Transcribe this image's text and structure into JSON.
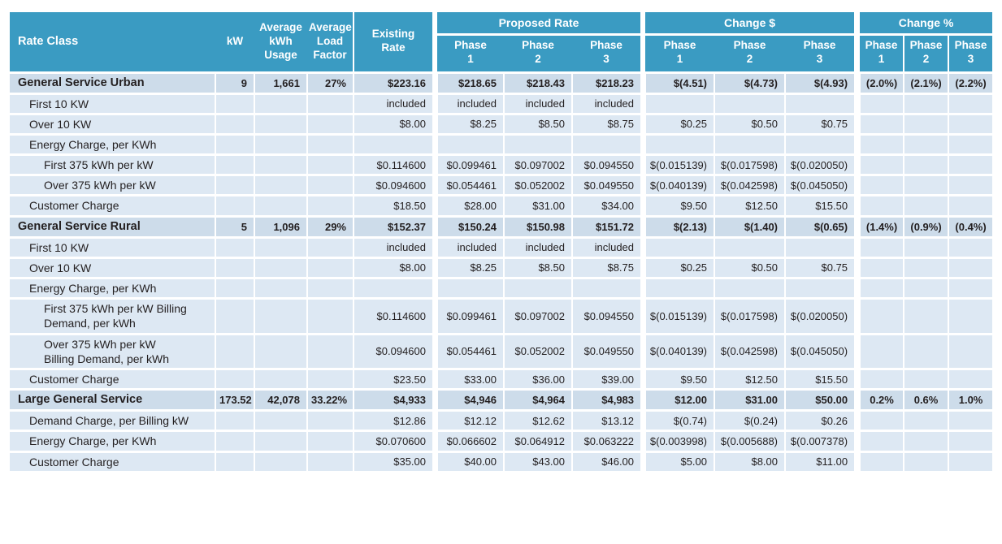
{
  "colors": {
    "header_bg": "#3A9BC2",
    "header_text": "#FFFFFF",
    "detail_row_bg": "#DDE8F3",
    "class_row_bg": "#CDDCEA",
    "text": "#231F20",
    "separator": "#FFFFFF"
  },
  "table": {
    "header": {
      "rate_class": "Rate Class",
      "kw": "kW",
      "avg_kwh_usage": "Average\nkWh\nUsage",
      "avg_load_factor": "Average\nLoad\nFactor",
      "existing_rate": "Existing\nRate",
      "groups": {
        "proposed_rate": "Proposed Rate",
        "change_dollar": "Change $",
        "change_percent": "Change %"
      },
      "phases": [
        "Phase\n1",
        "Phase\n2",
        "Phase\n3"
      ]
    },
    "rows": [
      {
        "label": "General Service Urban",
        "indent": 0,
        "class_row": true,
        "cells": [
          "9",
          "1,661",
          "27%",
          "$223.16",
          "$218.65",
          "$218.43",
          "$218.23",
          "$(4.51)",
          "$(4.73)",
          "$(4.93)",
          "(2.0%)",
          "(2.1%)",
          "(2.2%)"
        ]
      },
      {
        "label": "First 10 KW",
        "indent": 1,
        "class_row": false,
        "cells": [
          "",
          "",
          "",
          "included",
          "included",
          "included",
          "included",
          "",
          "",
          "",
          "",
          "",
          ""
        ]
      },
      {
        "label": "Over 10 KW",
        "indent": 1,
        "class_row": false,
        "cells": [
          "",
          "",
          "",
          "$8.00",
          "$8.25",
          "$8.50",
          "$8.75",
          "$0.25",
          "$0.50",
          "$0.75",
          "",
          "",
          ""
        ]
      },
      {
        "label": "Energy Charge, per KWh",
        "indent": 1,
        "class_row": false,
        "cells": [
          "",
          "",
          "",
          "",
          "",
          "",
          "",
          "",
          "",
          "",
          "",
          "",
          ""
        ]
      },
      {
        "label": "First 375 kWh per kW",
        "indent": 2,
        "class_row": false,
        "cells": [
          "",
          "",
          "",
          "$0.114600",
          "$0.099461",
          "$0.097002",
          "$0.094550",
          "$(0.015139)",
          "$(0.017598)",
          "$(0.020050)",
          "",
          "",
          ""
        ]
      },
      {
        "label": "Over 375 kWh per kW",
        "indent": 2,
        "class_row": false,
        "cells": [
          "",
          "",
          "",
          "$0.094600",
          "$0.054461",
          "$0.052002",
          "$0.049550",
          "$(0.040139)",
          "$(0.042598)",
          "$(0.045050)",
          "",
          "",
          ""
        ]
      },
      {
        "label": "Customer Charge",
        "indent": 1,
        "class_row": false,
        "cells": [
          "",
          "",
          "",
          "$18.50",
          "$28.00",
          "$31.00",
          "$34.00",
          "$9.50",
          "$12.50",
          "$15.50",
          "",
          "",
          ""
        ]
      },
      {
        "label": "General Service Rural",
        "indent": 0,
        "class_row": true,
        "cells": [
          "5",
          "1,096",
          "29%",
          "$152.37",
          "$150.24",
          "$150.98",
          "$151.72",
          "$(2.13)",
          "$(1.40)",
          "$(0.65)",
          "(1.4%)",
          "(0.9%)",
          "(0.4%)"
        ]
      },
      {
        "label": "First 10 KW",
        "indent": 1,
        "class_row": false,
        "cells": [
          "",
          "",
          "",
          "included",
          "included",
          "included",
          "included",
          "",
          "",
          "",
          "",
          "",
          ""
        ]
      },
      {
        "label": "Over 10 KW",
        "indent": 1,
        "class_row": false,
        "cells": [
          "",
          "",
          "",
          "$8.00",
          "$8.25",
          "$8.50",
          "$8.75",
          "$0.25",
          "$0.50",
          "$0.75",
          "",
          "",
          ""
        ]
      },
      {
        "label": "Energy Charge, per KWh",
        "indent": 1,
        "class_row": false,
        "cells": [
          "",
          "",
          "",
          "",
          "",
          "",
          "",
          "",
          "",
          "",
          "",
          "",
          ""
        ]
      },
      {
        "label": "First 375 kWh per kW Billing\nDemand, per kWh",
        "indent": 2,
        "class_row": false,
        "cells": [
          "",
          "",
          "",
          "$0.114600",
          "$0.099461",
          "$0.097002",
          "$0.094550",
          "$(0.015139)",
          "$(0.017598)",
          "$(0.020050)",
          "",
          "",
          ""
        ]
      },
      {
        "label": "Over 375 kWh per kW\nBilling Demand, per kWh",
        "indent": 2,
        "class_row": false,
        "cells": [
          "",
          "",
          "",
          "$0.094600",
          "$0.054461",
          "$0.052002",
          "$0.049550",
          "$(0.040139)",
          "$(0.042598)",
          "$(0.045050)",
          "",
          "",
          ""
        ]
      },
      {
        "label": "Customer Charge",
        "indent": 1,
        "class_row": false,
        "cells": [
          "",
          "",
          "",
          "$23.50",
          "$33.00",
          "$36.00",
          "$39.00",
          "$9.50",
          "$12.50",
          "$15.50",
          "",
          "",
          ""
        ]
      },
      {
        "label": "Large General Service",
        "indent": 0,
        "class_row": true,
        "cells": [
          "173.52",
          "42,078",
          "33.22%",
          "$4,933",
          "$4,946",
          "$4,964",
          "$4,983",
          "$12.00",
          "$31.00",
          "$50.00",
          "0.2%",
          "0.6%",
          "1.0%"
        ]
      },
      {
        "label": "Demand Charge, per Billing kW",
        "indent": 1,
        "class_row": false,
        "cells": [
          "",
          "",
          "",
          "$12.86",
          "$12.12",
          "$12.62",
          "$13.12",
          "$(0.74)",
          "$(0.24)",
          "$0.26",
          "",
          "",
          ""
        ]
      },
      {
        "label": "Energy Charge, per KWh",
        "indent": 1,
        "class_row": false,
        "cells": [
          "",
          "",
          "",
          "$0.070600",
          "$0.066602",
          "$0.064912",
          "$0.063222",
          "$(0.003998)",
          "$(0.005688)",
          "$(0.007378)",
          "",
          "",
          ""
        ]
      },
      {
        "label": "Customer Charge",
        "indent": 1,
        "class_row": false,
        "cells": [
          "",
          "",
          "",
          "$35.00",
          "$40.00",
          "$43.00",
          "$46.00",
          "$5.00",
          "$8.00",
          "$11.00",
          "",
          "",
          ""
        ]
      }
    ]
  }
}
